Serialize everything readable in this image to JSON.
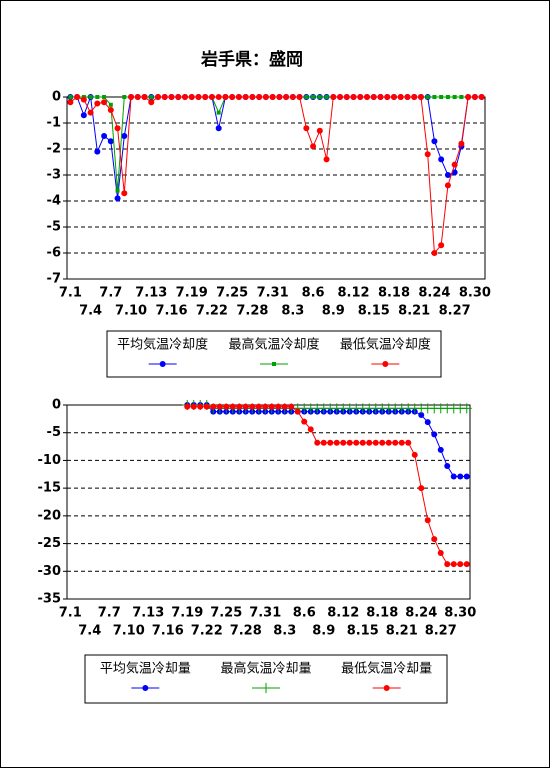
{
  "chart_data": [
    {
      "type": "line",
      "title": "岩手県：盛岡",
      "categories": [
        "7.1",
        null,
        null,
        "7.4",
        null,
        null,
        "7.7",
        null,
        null,
        "7.10",
        null,
        null,
        "7.13",
        null,
        null,
        "7.16",
        null,
        null,
        "7.19",
        null,
        null,
        "7.22",
        null,
        null,
        "7.25",
        null,
        null,
        "7.28",
        null,
        null,
        "7.31",
        null,
        null,
        "8.3",
        null,
        null,
        "8.6",
        null,
        null,
        "8.9",
        null,
        null,
        "8.12",
        null,
        null,
        "8.15",
        null,
        null,
        "8.18",
        null,
        null,
        "8.21",
        null,
        null,
        "8.24",
        null,
        null,
        "8.27",
        null,
        null,
        "8.30",
        null
      ],
      "ylim": [
        -7,
        0
      ],
      "yticks": [
        0,
        -1,
        -2,
        -3,
        -4,
        -5,
        -6,
        -7
      ],
      "grid": true,
      "legend": "bottom",
      "series": [
        {
          "name": "平均気温冷却度",
          "color": "#0000ff",
          "marker": "circle",
          "values": [
            0,
            0,
            -0.7,
            0,
            -2.1,
            -1.5,
            -1.7,
            -3.9,
            -1.5,
            0,
            0,
            0,
            0,
            0,
            0,
            0,
            0,
            0,
            0,
            0,
            0,
            0,
            -1.2,
            0,
            0,
            0,
            0,
            0,
            0,
            0,
            0,
            0,
            0,
            0,
            0,
            0,
            0,
            0,
            0,
            0,
            0,
            0,
            0,
            0,
            0,
            0,
            0,
            0,
            0,
            0,
            0,
            0,
            0,
            0,
            -1.7,
            -2.4,
            -3.0,
            -2.9,
            -1.9,
            0,
            0,
            0
          ]
        },
        {
          "name": "最高気温冷却度",
          "color": "#00a000",
          "marker": "square",
          "values": [
            0,
            0,
            0,
            0,
            0,
            0,
            -0.3,
            -3.6,
            0,
            0,
            0,
            0,
            0,
            0,
            0,
            0,
            0,
            0,
            0,
            0,
            0,
            0,
            -0.6,
            0,
            0,
            0,
            0,
            0,
            0,
            0,
            0,
            0,
            0,
            0,
            0,
            0,
            0,
            0,
            0,
            0,
            0,
            0,
            0,
            0,
            0,
            0,
            0,
            0,
            0,
            0,
            0,
            0,
            0,
            0,
            0,
            0,
            0,
            0,
            0,
            0,
            0,
            0
          ]
        },
        {
          "name": "最低気温冷却度",
          "color": "#ff0000",
          "marker": "circle",
          "values": [
            -0.2,
            0,
            -0.1,
            -0.6,
            -0.25,
            -0.2,
            -0.5,
            -1.2,
            -3.7,
            0,
            0,
            0,
            -0.2,
            0,
            0,
            0,
            0,
            0,
            0,
            0,
            0,
            0,
            0,
            0,
            0,
            0,
            0,
            0,
            0,
            0,
            0,
            0,
            0,
            0,
            0,
            -1.2,
            -1.9,
            -1.3,
            -2.4,
            0,
            0,
            0,
            0,
            0,
            0,
            0,
            0,
            0,
            0,
            0,
            0,
            0,
            0,
            -2.2,
            -6.0,
            -5.7,
            -3.4,
            -2.6,
            -1.8,
            0,
            0,
            0
          ]
        }
      ]
    },
    {
      "type": "line",
      "categories": [
        "7.1",
        null,
        null,
        "7.4",
        null,
        null,
        "7.7",
        null,
        null,
        "7.10",
        null,
        null,
        "7.13",
        null,
        null,
        "7.16",
        null,
        null,
        "7.19",
        null,
        null,
        "7.22",
        null,
        null,
        "7.25",
        null,
        null,
        "7.28",
        null,
        null,
        "7.31",
        null,
        null,
        "8.3",
        null,
        null,
        "8.6",
        null,
        null,
        "8.9",
        null,
        null,
        "8.12",
        null,
        null,
        "8.15",
        null,
        null,
        "8.18",
        null,
        null,
        "8.21",
        null,
        null,
        "8.24",
        null,
        null,
        "8.27",
        null,
        null,
        "8.30",
        null
      ],
      "ylim": [
        -35,
        0
      ],
      "yticks": [
        0,
        -5,
        -10,
        -15,
        -20,
        -25,
        -30,
        -35
      ],
      "grid": true,
      "legend": "bottom",
      "series": [
        {
          "name": "平均気温冷却量",
          "color": "#0000ff",
          "marker": "circle",
          "values": [
            null,
            null,
            null,
            null,
            null,
            null,
            null,
            null,
            null,
            null,
            null,
            null,
            null,
            null,
            null,
            null,
            null,
            null,
            0,
            0,
            0,
            0,
            -1.2,
            -1.2,
            -1.2,
            -1.2,
            -1.2,
            -1.2,
            -1.2,
            -1.2,
            -1.2,
            -1.2,
            -1.2,
            -1.2,
            -1.2,
            -1.2,
            -1.2,
            -1.2,
            -1.2,
            -1.2,
            -1.2,
            -1.2,
            -1.2,
            -1.2,
            -1.2,
            -1.2,
            -1.2,
            -1.2,
            -1.2,
            -1.2,
            -1.2,
            -1.2,
            -1.2,
            -1.2,
            -1.8,
            -3.1,
            -5.3,
            -8.1,
            -11.0,
            -12.9,
            -12.9,
            -12.9
          ]
        },
        {
          "name": "最高気温冷却量",
          "color": "#00a000",
          "marker": "plus",
          "values": [
            null,
            null,
            null,
            null,
            null,
            null,
            null,
            null,
            null,
            null,
            null,
            null,
            null,
            null,
            null,
            null,
            null,
            null,
            0,
            0,
            0,
            0,
            -0.6,
            -0.6,
            -0.6,
            -0.6,
            -0.6,
            -0.6,
            -0.6,
            -0.6,
            -0.6,
            -0.6,
            -0.6,
            -0.6,
            -0.6,
            -0.6,
            -0.6,
            -0.6,
            -0.6,
            -0.6,
            -0.6,
            -0.6,
            -0.6,
            -0.6,
            -0.6,
            -0.6,
            -0.6,
            -0.6,
            -0.6,
            -0.6,
            -0.6,
            -0.6,
            -0.6,
            -0.6,
            -0.6,
            -0.6,
            -0.6,
            -0.6,
            -0.6,
            -0.6,
            -0.6,
            -0.6
          ]
        },
        {
          "name": "最低気温冷却量",
          "color": "#ff0000",
          "marker": "circle",
          "values": [
            null,
            null,
            null,
            null,
            null,
            null,
            null,
            null,
            null,
            null,
            null,
            null,
            null,
            null,
            null,
            null,
            null,
            null,
            -0.3,
            -0.3,
            -0.3,
            -0.3,
            -0.3,
            -0.3,
            -0.3,
            -0.3,
            -0.3,
            -0.3,
            -0.3,
            -0.3,
            -0.3,
            -0.3,
            -0.3,
            -0.3,
            -0.3,
            -1.2,
            -3.0,
            -4.4,
            -6.8,
            -6.8,
            -6.8,
            -6.8,
            -6.8,
            -6.8,
            -6.8,
            -6.8,
            -6.8,
            -6.8,
            -6.8,
            -6.8,
            -6.8,
            -6.8,
            -6.8,
            -9.0,
            -15.0,
            -20.8,
            -24.2,
            -26.7,
            -28.7,
            -28.7,
            -28.7,
            -28.7
          ]
        }
      ]
    }
  ]
}
